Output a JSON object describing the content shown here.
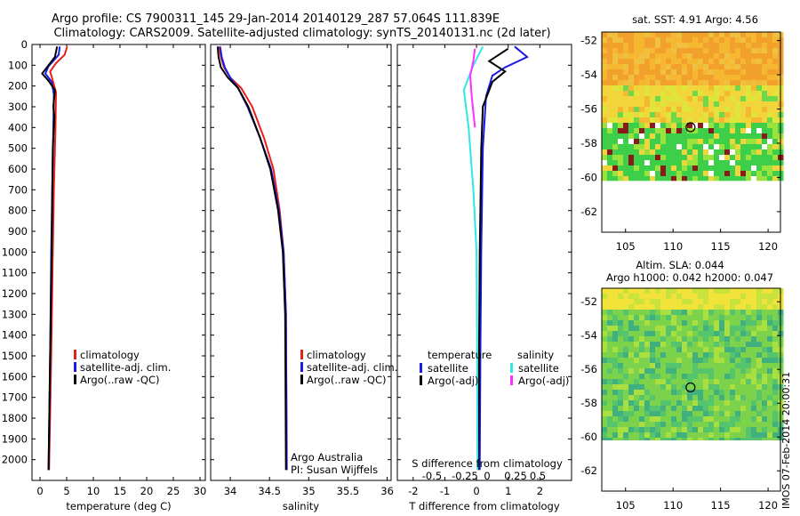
{
  "header": {
    "title_line1": "Argo profile: CS 7900311_145 29-Jan-2014 20140129_287 57.064S 111.839E",
    "title_line2": "Climatology: CARS2009. Satellite-adjusted climatology: synTS_20140131.nc (2d later)"
  },
  "footer": {
    "credit": "IMOS 07-Feb-2014 20:00:31",
    "argo_label_1": "Argo Australia",
    "argo_label_2": "PI: Susan Wijffels"
  },
  "colors": {
    "climatology": "#e8201c",
    "satellite": "#1a1ae6",
    "argo": "#000000",
    "sat_salinity": "#32e6e6",
    "argo_salinity": "#ff30ff"
  },
  "chart_data": [
    {
      "id": "temperature",
      "type": "line",
      "xlabel": "temperature (deg C)",
      "ylabel": "",
      "xlim": [
        -1.5,
        31
      ],
      "ylim": [
        2100,
        0
      ],
      "xticks": [
        0,
        5,
        10,
        15,
        20,
        25,
        30
      ],
      "yticks": [
        0,
        100,
        200,
        300,
        400,
        500,
        600,
        700,
        800,
        900,
        1000,
        1100,
        1200,
        1300,
        1400,
        1500,
        1600,
        1700,
        1800,
        1900,
        2000
      ],
      "legend": [
        "climatology",
        "satellite-adj. clim.",
        "Argo(..raw -QC)"
      ],
      "series": [
        {
          "name": "climatology",
          "color": "#e8201c",
          "points": [
            [
              5.1,
              10
            ],
            [
              4.6,
              50
            ],
            [
              3.0,
              90
            ],
            [
              1.9,
              130
            ],
            [
              2.4,
              175
            ],
            [
              3.0,
              230
            ],
            [
              2.9,
              400
            ],
            [
              2.6,
              700
            ],
            [
              2.4,
              1000
            ],
            [
              2.1,
              1500
            ],
            [
              1.7,
              2050
            ]
          ]
        },
        {
          "name": "satellite-adj. clim.",
          "color": "#1a1ae6",
          "points": [
            [
              3.7,
              10
            ],
            [
              3.5,
              50
            ],
            [
              1.6,
              105
            ],
            [
              1.0,
              140
            ],
            [
              2.2,
              180
            ],
            [
              2.6,
              240
            ],
            [
              2.5,
              400
            ],
            [
              2.3,
              700
            ],
            [
              2.1,
              1000
            ],
            [
              1.9,
              1500
            ],
            [
              1.6,
              2050
            ]
          ]
        },
        {
          "name": "Argo(..raw -QC)",
          "color": "#000000",
          "points": [
            [
              3.2,
              10
            ],
            [
              2.8,
              60
            ],
            [
              1.3,
              110
            ],
            [
              0.4,
              140
            ],
            [
              1.6,
              175
            ],
            [
              2.8,
              220
            ],
            [
              2.5,
              300
            ],
            [
              2.7,
              350
            ],
            [
              2.4,
              500
            ],
            [
              2.3,
              700
            ],
            [
              2.2,
              1000
            ],
            [
              1.9,
              1500
            ],
            [
              1.6,
              2050
            ]
          ]
        }
      ]
    },
    {
      "id": "salinity",
      "type": "line",
      "xlabel": "salinity",
      "ylabel": "",
      "xlim": [
        33.75,
        36.05
      ],
      "ylim": [
        2100,
        0
      ],
      "xticks": [
        34,
        34.5,
        35,
        35.5,
        36
      ],
      "tick_labels": [
        "34",
        "34.5",
        "35",
        "35.5",
        "36"
      ],
      "legend": [
        "climatology",
        "satellite-adj. clim.",
        "Argo(..raw -QC)"
      ],
      "series": [
        {
          "name": "climatology",
          "color": "#e8201c",
          "points": [
            [
              33.86,
              10
            ],
            [
              33.88,
              60
            ],
            [
              33.92,
              110
            ],
            [
              34.0,
              160
            ],
            [
              34.14,
              210
            ],
            [
              34.28,
              300
            ],
            [
              34.43,
              450
            ],
            [
              34.55,
              600
            ],
            [
              34.63,
              800
            ],
            [
              34.68,
              1000
            ],
            [
              34.71,
              1300
            ],
            [
              34.72,
              2050
            ]
          ]
        },
        {
          "name": "satellite-adj. clim.",
          "color": "#1a1ae6",
          "points": [
            [
              33.87,
              10
            ],
            [
              33.89,
              60
            ],
            [
              33.93,
              110
            ],
            [
              34.0,
              160
            ],
            [
              34.1,
              210
            ],
            [
              34.22,
              300
            ],
            [
              34.38,
              450
            ],
            [
              34.52,
              600
            ],
            [
              34.62,
              800
            ],
            [
              34.68,
              1000
            ],
            [
              34.71,
              1300
            ],
            [
              34.72,
              2050
            ]
          ]
        },
        {
          "name": "Argo(..raw -QC)",
          "color": "#000000",
          "points": [
            [
              33.84,
              10
            ],
            [
              33.85,
              60
            ],
            [
              33.88,
              110
            ],
            [
              33.97,
              160
            ],
            [
              34.1,
              210
            ],
            [
              34.23,
              300
            ],
            [
              34.38,
              450
            ],
            [
              34.51,
              600
            ],
            [
              34.61,
              800
            ],
            [
              34.67,
              1000
            ],
            [
              34.7,
              1300
            ],
            [
              34.71,
              2050
            ]
          ]
        }
      ]
    },
    {
      "id": "difference",
      "type": "line",
      "xlabel": "T difference from climatology",
      "title": "S difference from climatology",
      "xlim": [
        -2.5,
        3.0
      ],
      "ylim": [
        2100,
        0
      ],
      "xticks": [
        -2,
        -1,
        0,
        1,
        2
      ],
      "top_axis_ticks": [
        -0.5,
        -0.25,
        0,
        0.25,
        0.5
      ],
      "top_axis_tick_labels": [
        "-0.5",
        "-0.25",
        "0",
        "0.25",
        "0.5"
      ],
      "legend_groups": [
        "temperature",
        "salinity"
      ],
      "legend": [
        "satellite",
        "Argo(-adj)",
        "satellite",
        "Argo(-adj)"
      ],
      "series": [
        {
          "name": "satellite",
          "group": "temperature",
          "color": "#1a1ae6",
          "points": [
            [
              1.2,
              10
            ],
            [
              1.6,
              60
            ],
            [
              0.9,
              110
            ],
            [
              0.5,
              150
            ],
            [
              0.3,
              250
            ],
            [
              0.2,
              500
            ],
            [
              0.15,
              1000
            ],
            [
              0.12,
              1500
            ],
            [
              0.1,
              2050
            ]
          ]
        },
        {
          "name": "Argo(-adj)",
          "group": "temperature",
          "color": "#000000",
          "points": [
            [
              1.0,
              20
            ],
            [
              0.4,
              80
            ],
            [
              0.9,
              130
            ],
            [
              0.5,
              180
            ],
            [
              0.2,
              300
            ],
            [
              0.15,
              500
            ],
            [
              0.1,
              1000
            ],
            [
              0.08,
              1500
            ],
            [
              0.06,
              2050
            ]
          ]
        },
        {
          "name": "satellite",
          "group": "salinity",
          "color": "#32e6e6",
          "points": [
            [
              0.2,
              10
            ],
            [
              -0.1,
              100
            ],
            [
              -0.4,
              220
            ],
            [
              -0.25,
              400
            ],
            [
              -0.1,
              700
            ],
            [
              0.0,
              1000
            ],
            [
              0.02,
              1500
            ],
            [
              0.03,
              2050
            ]
          ]
        },
        {
          "name": "Argo(-adj)",
          "group": "salinity",
          "color": "#ff30ff",
          "points": [
            [
              -0.05,
              20
            ],
            [
              -0.1,
              80
            ],
            [
              -0.2,
              150
            ],
            [
              -0.15,
              250
            ],
            [
              -0.05,
              400
            ]
          ]
        }
      ]
    },
    {
      "id": "sst-map",
      "type": "heatmap",
      "title": "sat. SST: 4.91 Argo: 4.56",
      "xlim": [
        102.5,
        121.3
      ],
      "ylim": [
        -63.2,
        -51.5
      ],
      "xticks": [
        105,
        110,
        115,
        120
      ],
      "yticks": [
        -52,
        -54,
        -56,
        -58,
        -60,
        -62
      ],
      "marker": {
        "lon": 111.839,
        "lat": -57.064
      }
    },
    {
      "id": "sla-map",
      "type": "heatmap",
      "title_line1": "Altim. SLA: 0.044",
      "title_line2": "Argo h1000: 0.042 h2000: 0.047",
      "xlim": [
        102.5,
        121.3
      ],
      "ylim": [
        -63.2,
        -51.2
      ],
      "xticks": [
        105,
        110,
        115,
        120
      ],
      "yticks": [
        -52,
        -54,
        -56,
        -58,
        -60,
        -62
      ],
      "marker": {
        "lon": 111.839,
        "lat": -57.064
      }
    }
  ]
}
